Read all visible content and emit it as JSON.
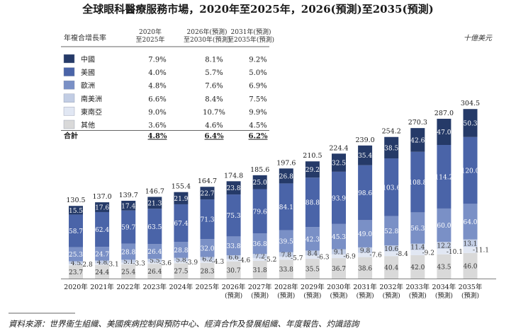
{
  "chart_data": {
    "type": "bar",
    "stacked": true,
    "title": "全球眼科醫療服務市場，2020年至2025年，2026(預測)至2035(預測)",
    "unit": "十億美元",
    "categories": [
      [
        "2020年"
      ],
      [
        "2021年"
      ],
      [
        "2022年"
      ],
      [
        "2023年"
      ],
      [
        "2024年"
      ],
      [
        "2025年"
      ],
      [
        "2026年",
        "(預測)"
      ],
      [
        "2027年",
        "(預測)"
      ],
      [
        "2028年",
        "(預測)"
      ],
      [
        "2029年",
        "(預測)"
      ],
      [
        "2030年",
        "(預測)"
      ],
      [
        "2031年",
        "(預測)"
      ],
      [
        "2032年",
        "(預測)"
      ],
      [
        "2033年",
        "(預測)"
      ],
      [
        "2034年",
        "(預測)"
      ],
      [
        "2035年",
        "(預測)"
      ]
    ],
    "totals": [
      130.5,
      137.0,
      139.7,
      146.7,
      155.4,
      164.7,
      174.8,
      185.6,
      197.6,
      210.5,
      224.4,
      239.0,
      254.2,
      270.3,
      287.0,
      304.5
    ],
    "series": [
      {
        "name": "其他",
        "color": "#d9d9d9",
        "values": [
          23.7,
          24.4,
          25.4,
          26.4,
          27.5,
          28.3,
          30.7,
          31.8,
          33.8,
          35.5,
          36.7,
          38.6,
          40.4,
          42.0,
          43.5,
          46.0
        ],
        "labels": [
          "23.7",
          "24.4",
          "25.4",
          "26.4",
          "27.5",
          "28.3",
          "30.7",
          "31.8",
          "33.8",
          "35.5",
          "36.7",
          "38.6",
          "40.4",
          "42.0",
          "43.5",
          "46.0"
        ]
      },
      {
        "name": "東南亞",
        "color": "#e1e7f3",
        "values": [
          2.8,
          3.1,
          3.3,
          3.6,
          3.9,
          4.3,
          4.6,
          5.2,
          5.7,
          6.3,
          6.9,
          7.6,
          8.4,
          9.2,
          10.1,
          11.1
        ],
        "labels": [
          "2.8",
          "3.1",
          "3.3",
          "3.6",
          "3.9",
          "4.3",
          "4.6",
          "5.2",
          "5.7",
          "6.3",
          "6.9",
          "7.6",
          "8.4",
          "9.2",
          "10.1",
          "11.1"
        ]
      },
      {
        "name": "南美洲",
        "color": "#c2cde4",
        "values": [
          4.5,
          4.8,
          5.1,
          5.5,
          5.8,
          6.2,
          6.6,
          7.2,
          7.8,
          8.4,
          9.1,
          9.8,
          10.6,
          11.4,
          12.2,
          13.1
        ],
        "labels": [
          "4.5",
          "4.8",
          "5.1",
          "5.5",
          "5.8",
          "6.2",
          "6.6",
          "7.2",
          "7.8",
          "8.4",
          "9.1",
          "9.8",
          "10.6",
          "11.4",
          "12.2",
          "13.1"
        ]
      },
      {
        "name": "歐洲",
        "color": "#7a90c6",
        "values": [
          25.3,
          24.7,
          28.8,
          26.4,
          28.8,
          32.0,
          33.8,
          36.8,
          39.5,
          42.3,
          45.3,
          49.0,
          52.8,
          56.3,
          60.0,
          64.0
        ],
        "labels": [
          "25.3",
          "24.7",
          "28.8",
          "26.4",
          "28.8",
          "32.0",
          "33.8",
          "36.8",
          "39.5",
          "42.3",
          "45.3",
          "49.0",
          "52.8",
          "56.3",
          "60.0",
          "64.0"
        ]
      },
      {
        "name": "美國",
        "color": "#4a64a8",
        "values": [
          58.7,
          62.4,
          59.7,
          63.5,
          67.4,
          71.3,
          75.3,
          79.6,
          84.1,
          88.8,
          93.9,
          98.6,
          103.6,
          108.8,
          114.2,
          120.0
        ],
        "labels": [
          "58.7",
          "62.4",
          "59.7",
          "63.5",
          "67.4",
          "71.3",
          "75.3",
          "79.6",
          "84.1",
          "88.8",
          "93.9",
          "98.6",
          "103.6",
          "108.8",
          "114.2",
          "120.0"
        ]
      },
      {
        "name": "中國",
        "color": "#253a68",
        "values": [
          15.5,
          17.6,
          17.4,
          21.3,
          21.9,
          22.7,
          23.8,
          25.0,
          26.8,
          29.2,
          32.5,
          35.4,
          38.5,
          42.6,
          47.0,
          50.3
        ],
        "labels": [
          "15.5",
          "17.6",
          "17.4",
          "21.3",
          "21.9",
          "22.7",
          "23.8",
          "25.0",
          "26.8",
          "29.2",
          "32.5",
          "35.4",
          "38.5",
          "42.6",
          "47.0",
          "50.3"
        ]
      }
    ],
    "cagr_table": {
      "header_label": "年複合增長率",
      "columns": [
        [
          "2020年",
          "至2025年"
        ],
        [
          "2026年(預測)",
          "至2030年(預測)"
        ],
        [
          "2031年(預測)",
          "至2035年(預測)"
        ]
      ],
      "rows": [
        {
          "name": "中國",
          "color": "#253a68",
          "values": [
            "7.9%",
            "8.1%",
            "9.2%"
          ]
        },
        {
          "name": "美國",
          "color": "#4a64a8",
          "values": [
            "4.0%",
            "5.7%",
            "5.0%"
          ]
        },
        {
          "name": "歐洲",
          "color": "#7a90c6",
          "values": [
            "4.8%",
            "7.6%",
            "6.9%"
          ]
        },
        {
          "name": "南美洲",
          "color": "#c2cde4",
          "values": [
            "6.6%",
            "8.4%",
            "7.5%"
          ]
        },
        {
          "name": "東南亞",
          "color": "#e1e7f3",
          "values": [
            "9.0%",
            "10.7%",
            "9.9%"
          ]
        },
        {
          "name": "其他",
          "color": "#d9d9d9",
          "values": [
            "3.6%",
            "4.6%",
            "4.5%"
          ]
        }
      ],
      "total": {
        "name": "合計",
        "values": [
          "4.8%",
          "6.4%",
          "6.2%"
        ]
      }
    },
    "source": "資料來源：世界衞生組織、美國疾病控制與預防中心、經濟合作及發展組織、年度報告、灼識諮詢"
  }
}
